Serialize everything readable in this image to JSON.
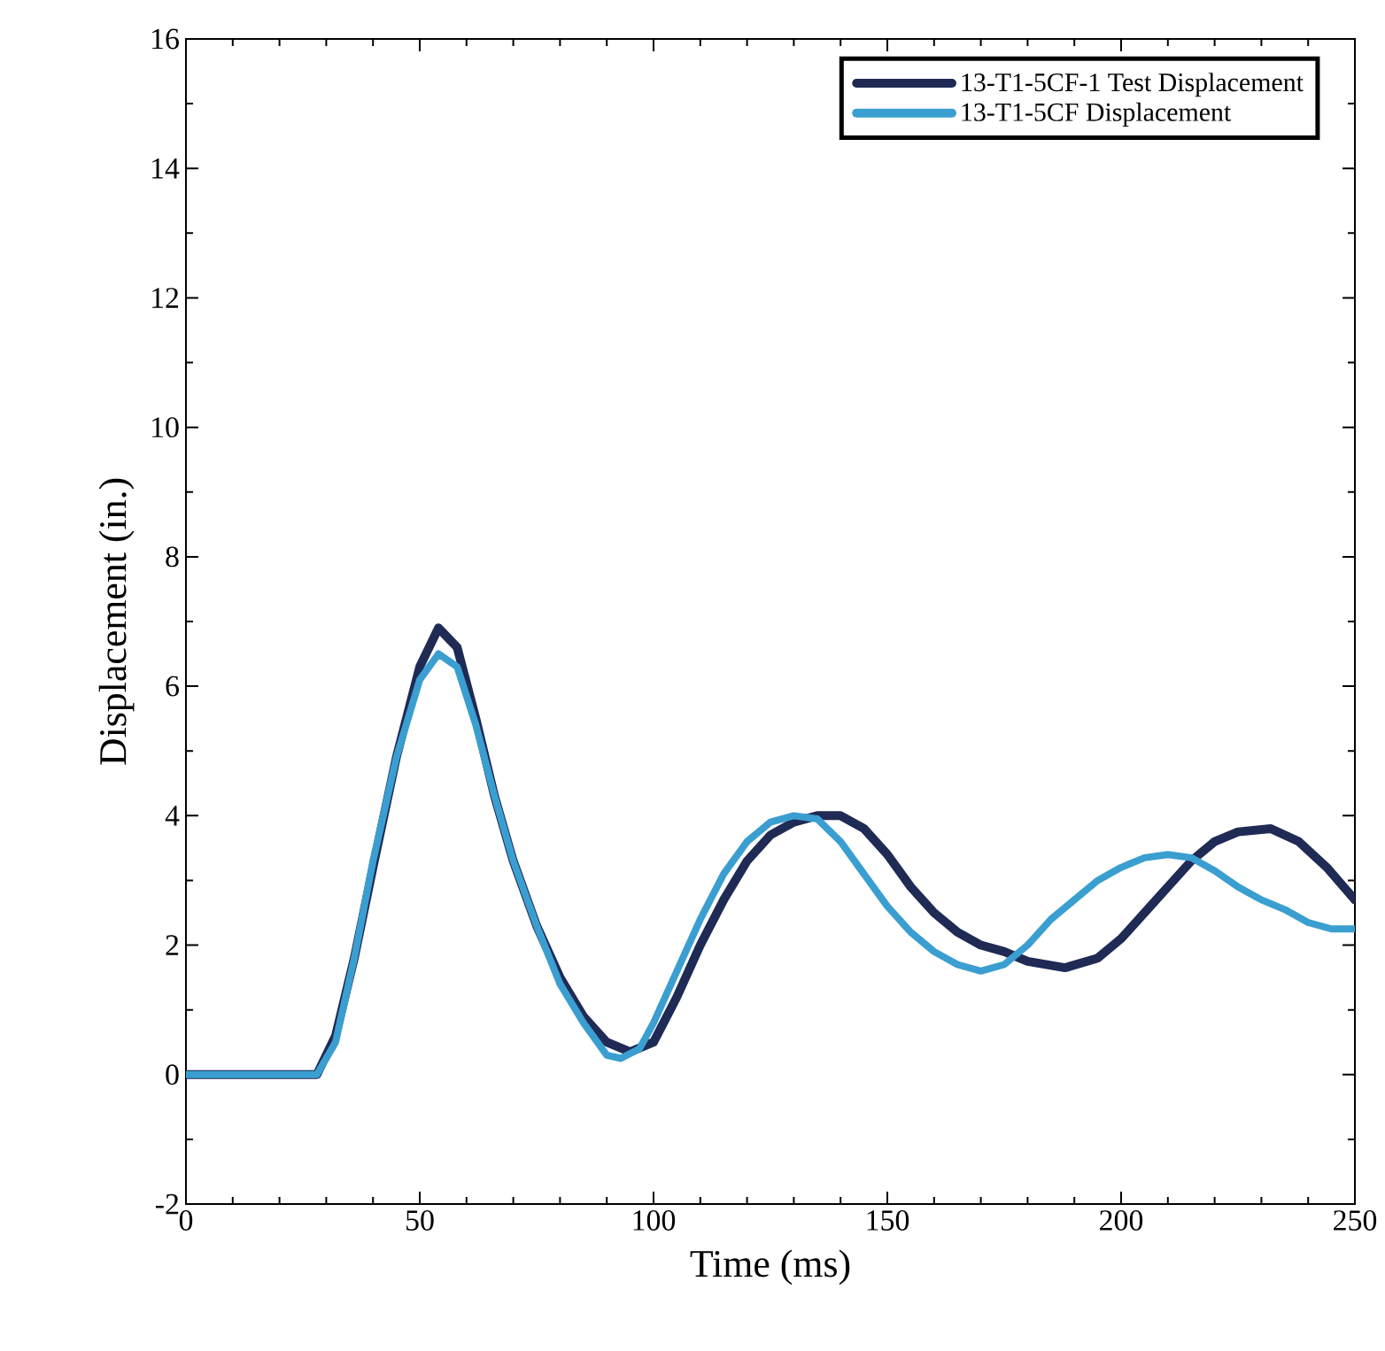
{
  "chart_data": {
    "type": "line",
    "xlabel": "Time (ms)",
    "ylabel": "Displacement (in.)",
    "xlim": [
      0,
      250
    ],
    "ylim": [
      -2,
      16
    ],
    "xticks": [
      0,
      50,
      100,
      150,
      200,
      250
    ],
    "yticks": [
      -2,
      0,
      2,
      4,
      6,
      8,
      10,
      12,
      14,
      16
    ],
    "grid": false,
    "legend": "top right",
    "marker": "none",
    "line_style": "solid",
    "series": [
      {
        "name": "13-T1-5CF-1 Test Displacement",
        "color": "#1f2a55",
        "x": [
          0,
          28,
          32,
          36,
          40,
          45,
          50,
          54,
          58,
          62,
          66,
          70,
          75,
          80,
          85,
          90,
          95,
          100,
          105,
          110,
          115,
          120,
          125,
          130,
          135,
          140,
          145,
          150,
          155,
          160,
          165,
          170,
          175,
          180,
          188,
          195,
          200,
          205,
          210,
          215,
          220,
          225,
          232,
          238,
          244,
          250
        ],
        "values": [
          0,
          0,
          0.6,
          1.8,
          3.2,
          4.9,
          6.3,
          6.9,
          6.6,
          5.5,
          4.3,
          3.3,
          2.3,
          1.5,
          0.9,
          0.5,
          0.35,
          0.5,
          1.2,
          2.0,
          2.7,
          3.3,
          3.7,
          3.9,
          4.0,
          4.0,
          3.8,
          3.4,
          2.9,
          2.5,
          2.2,
          2.0,
          1.9,
          1.75,
          1.65,
          1.8,
          2.1,
          2.5,
          2.9,
          3.3,
          3.6,
          3.75,
          3.8,
          3.6,
          3.2,
          2.7
        ]
      },
      {
        "name": "13-T1-5CF Displacement",
        "color": "#3a9fd0",
        "x": [
          0,
          28,
          32,
          36,
          40,
          45,
          50,
          54,
          58,
          62,
          66,
          70,
          75,
          80,
          85,
          90,
          93,
          97,
          100,
          105,
          110,
          115,
          120,
          125,
          130,
          135,
          140,
          145,
          150,
          155,
          160,
          165,
          170,
          175,
          180,
          185,
          190,
          195,
          200,
          205,
          210,
          215,
          220,
          225,
          230,
          235,
          240,
          245,
          250
        ],
        "values": [
          0,
          0,
          0.5,
          1.8,
          3.3,
          4.9,
          6.1,
          6.5,
          6.3,
          5.4,
          4.3,
          3.3,
          2.3,
          1.4,
          0.8,
          0.3,
          0.25,
          0.4,
          0.8,
          1.6,
          2.4,
          3.1,
          3.6,
          3.9,
          4.0,
          3.95,
          3.6,
          3.1,
          2.6,
          2.2,
          1.9,
          1.7,
          1.6,
          1.7,
          2.0,
          2.4,
          2.7,
          3.0,
          3.2,
          3.35,
          3.4,
          3.35,
          3.15,
          2.9,
          2.7,
          2.55,
          2.35,
          2.25,
          2.25
        ]
      }
    ]
  }
}
